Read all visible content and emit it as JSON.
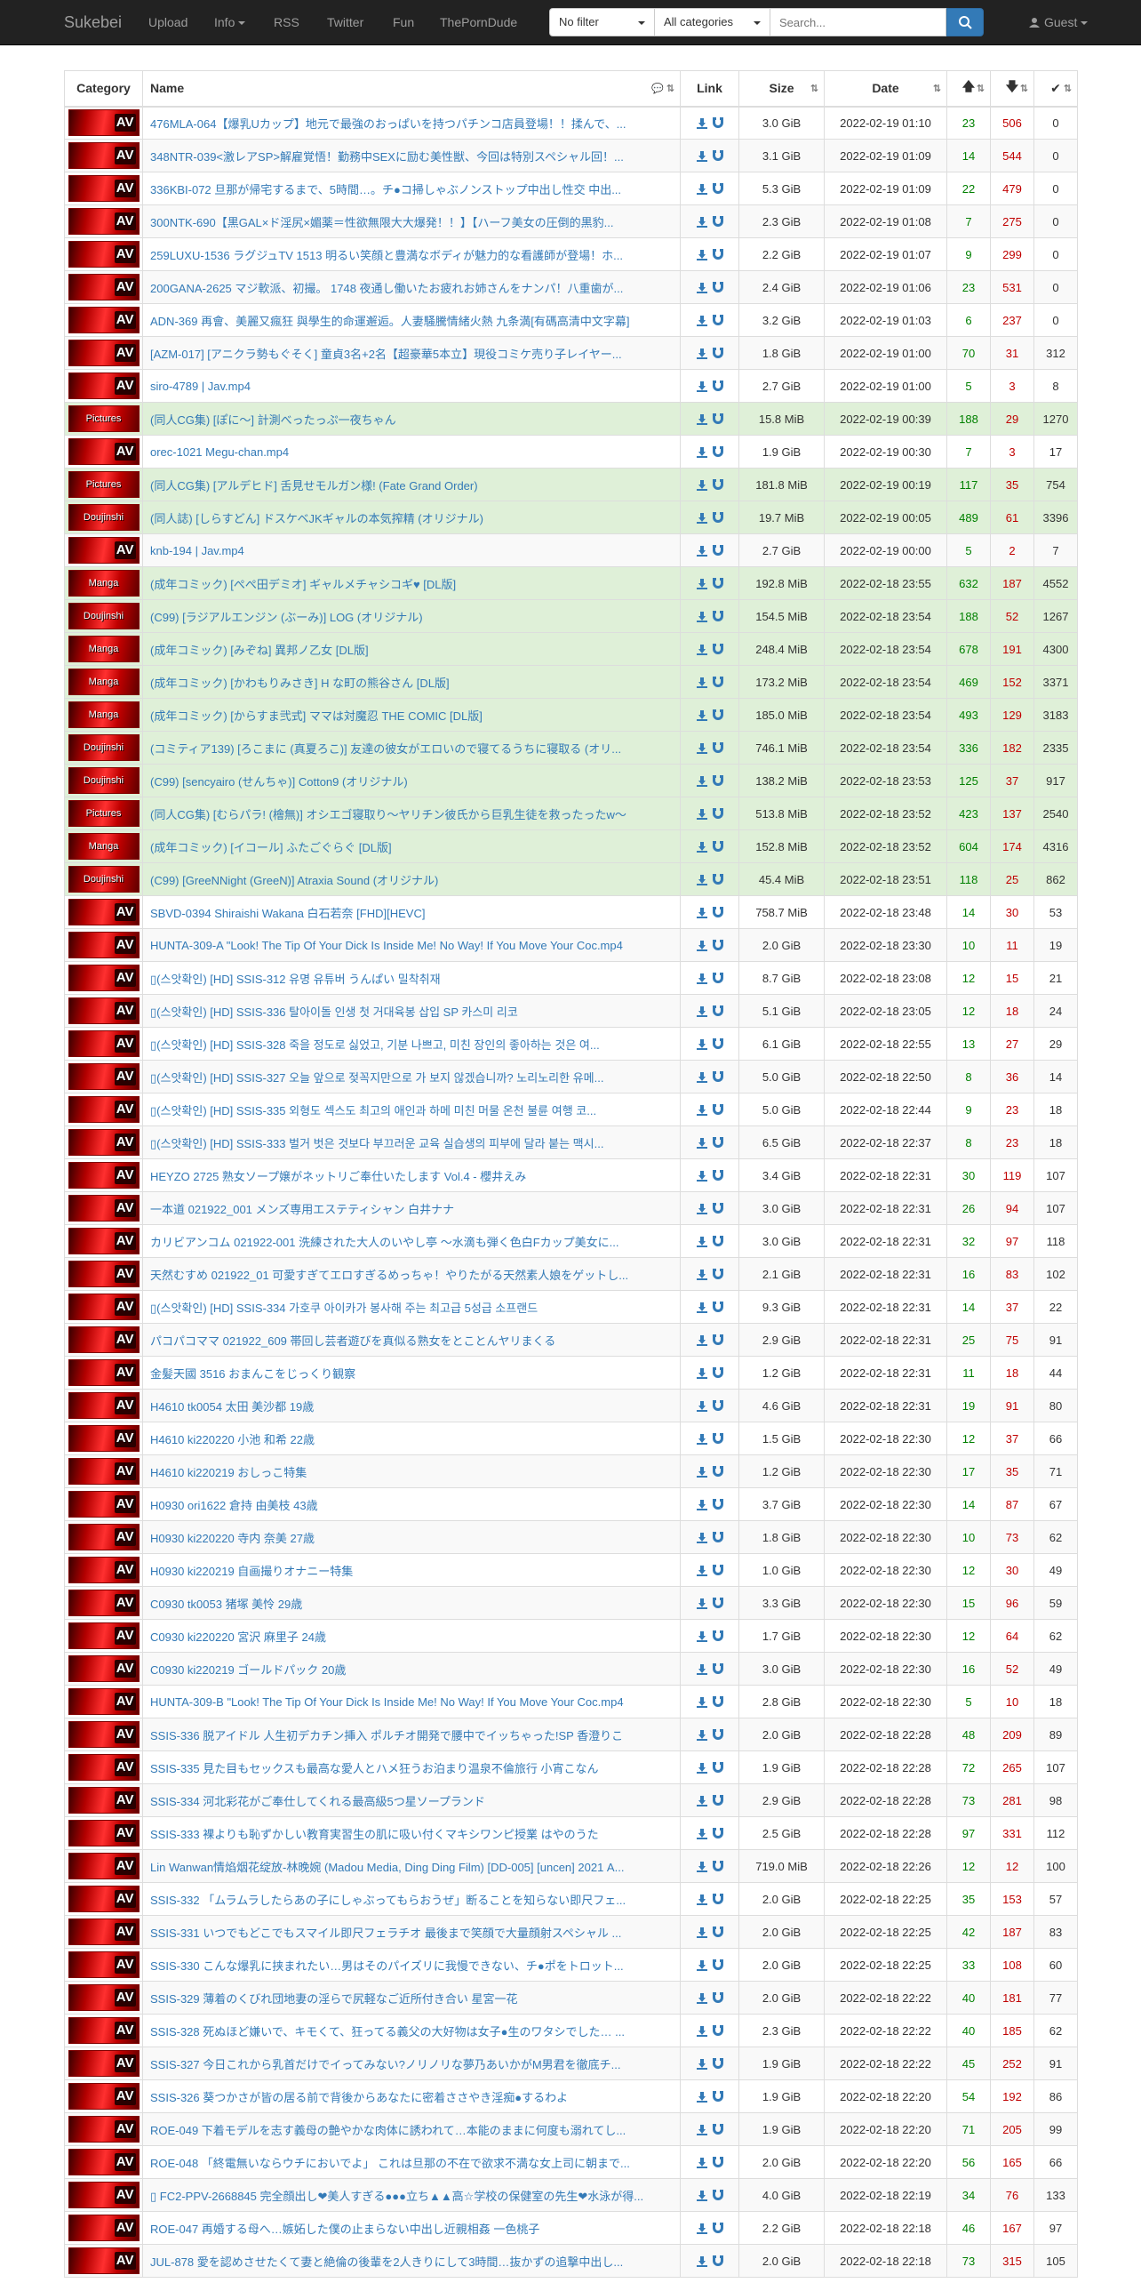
{
  "nav": {
    "brand": "Sukebei",
    "upload": "Upload",
    "info": "Info",
    "rss": "RSS",
    "twitter": "Twitter",
    "fun": "Fun",
    "thepornddude": "ThePornDude",
    "filter": "No filter",
    "categories": "All categories",
    "search_placeholder": "Search...",
    "guest": "Guest"
  },
  "table": {
    "headers": {
      "category": "Category",
      "name": "Name",
      "link": "Link",
      "size": "Size",
      "date": "Date"
    },
    "rows": [
      {
        "cat": "AV",
        "name": "476MLA-064【爆乳Uカップ】地元で最強のおっぱいを持つパチンコ店員登場！！揉んで、...",
        "size": "3.0 GiB",
        "date": "2022-02-19 01:10",
        "seed": "23",
        "leech": "506",
        "done": "0"
      },
      {
        "cat": "AV",
        "name": "348NTR-039<激レアSP>解雇覚悟！勤務中SEXに励む美性獣、今回は特別スペシャル回！...",
        "size": "3.1 GiB",
        "date": "2022-02-19 01:09",
        "seed": "14",
        "leech": "544",
        "done": "0"
      },
      {
        "cat": "AV",
        "name": "336KBI-072 旦那が帰宅するまで、5時間…。チ●コ掃しゃぶノンストップ中出し性交 中出...",
        "size": "5.3 GiB",
        "date": "2022-02-19 01:09",
        "seed": "22",
        "leech": "479",
        "done": "0"
      },
      {
        "cat": "AV",
        "name": "300NTK-690【黒GAL×ド淫尻×媚薬＝性欲無限大大爆発！！】【ハーフ美女の圧倒的黒豹...",
        "size": "2.3 GiB",
        "date": "2022-02-19 01:08",
        "seed": "7",
        "leech": "275",
        "done": "0"
      },
      {
        "cat": "AV",
        "name": "259LUXU-1536 ラグジュTV 1513 明るい笑顔と豊満なボディが魅力的な看護師が登場！ホ...",
        "size": "2.2 GiB",
        "date": "2022-02-19 01:07",
        "seed": "9",
        "leech": "299",
        "done": "0"
      },
      {
        "cat": "AV",
        "name": "200GANA-2625 マジ軟派、初撮。 1748 夜通し働いたお疲れお姉さんをナンパ！八重歯が...",
        "size": "2.4 GiB",
        "date": "2022-02-19 01:06",
        "seed": "23",
        "leech": "531",
        "done": "0"
      },
      {
        "cat": "AV",
        "name": "ADN-369 再會、美麗又瘋狂 與學生的命運邂逅。人妻騒騰情緒火熱 九条満[有碼高清中文字幕]",
        "size": "3.2 GiB",
        "date": "2022-02-19 01:03",
        "seed": "6",
        "leech": "237",
        "done": "0"
      },
      {
        "cat": "AV",
        "name": "[AZM-017] [アニクラ勢もぐそく] 童貞3名+2名【超豪華5本立】現役コミケ売り子レイヤー...",
        "size": "1.8 GiB",
        "date": "2022-02-19 01:00",
        "seed": "70",
        "leech": "31",
        "done": "312"
      },
      {
        "cat": "AV",
        "name": "siro-4789 | Jav.mp4",
        "size": "2.7 GiB",
        "date": "2022-02-19 01:00",
        "seed": "5",
        "leech": "3",
        "done": "8"
      },
      {
        "cat": "Pictures",
        "name": "(同人CG集) [ぽに～] 計測べったっぷ一夜ちゃん",
        "size": "15.8 MiB",
        "date": "2022-02-19 00:39",
        "seed": "188",
        "leech": "29",
        "done": "1270",
        "ok": true
      },
      {
        "cat": "AV",
        "name": "orec-1021 Megu-chan.mp4",
        "size": "1.9 GiB",
        "date": "2022-02-19 00:30",
        "seed": "7",
        "leech": "3",
        "done": "17"
      },
      {
        "cat": "Pictures",
        "name": "(同人CG集) [アルデヒド] 舌見せモルガン様! (Fate Grand Order)",
        "size": "181.8 MiB",
        "date": "2022-02-19 00:19",
        "seed": "117",
        "leech": "35",
        "done": "754",
        "ok": true
      },
      {
        "cat": "Doujinshi",
        "name": "(同人誌) [しらすどん] ドスケベJKギャルの本気搾精 (オリジナル)",
        "size": "19.7 MiB",
        "date": "2022-02-19 00:05",
        "seed": "489",
        "leech": "61",
        "done": "3396",
        "ok": true
      },
      {
        "cat": "AV",
        "name": "knb-194 | Jav.mp4",
        "size": "2.7 GiB",
        "date": "2022-02-19 00:00",
        "seed": "5",
        "leech": "2",
        "done": "7"
      },
      {
        "cat": "Manga",
        "name": "(成年コミック) [ぺぺ田デミオ] ギャルメチャシコギ♥ [DL版]",
        "size": "192.8 MiB",
        "date": "2022-02-18 23:55",
        "seed": "632",
        "leech": "187",
        "done": "4552",
        "ok": true
      },
      {
        "cat": "Doujinshi",
        "name": "(C99) [ラジアルエンジン (ぶーみ)] LOG (オリジナル)",
        "size": "154.5 MiB",
        "date": "2022-02-18 23:54",
        "seed": "188",
        "leech": "52",
        "done": "1267",
        "ok": true
      },
      {
        "cat": "Manga",
        "name": "(成年コミック) [みぞね] 異邦ノ乙女 [DL版]",
        "size": "248.4 MiB",
        "date": "2022-02-18 23:54",
        "seed": "678",
        "leech": "191",
        "done": "4300",
        "ok": true
      },
      {
        "cat": "Manga",
        "name": "(成年コミック) [かわもりみさき] H な町の熊谷さん [DL版]",
        "size": "173.2 MiB",
        "date": "2022-02-18 23:54",
        "seed": "469",
        "leech": "152",
        "done": "3371",
        "ok": true
      },
      {
        "cat": "Manga",
        "name": "(成年コミック) [からすま弐式] ママは対魔忍 THE COMIC [DL版]",
        "size": "185.0 MiB",
        "date": "2022-02-18 23:54",
        "seed": "493",
        "leech": "129",
        "done": "3183",
        "ok": true
      },
      {
        "cat": "Doujinshi",
        "name": "(コミティア139) [ろこまに (真夏ろこ)] 友達の彼女がエロいので寝てるうちに寝取る (オリ...",
        "size": "746.1 MiB",
        "date": "2022-02-18 23:54",
        "seed": "336",
        "leech": "182",
        "done": "2335",
        "ok": true
      },
      {
        "cat": "Doujinshi",
        "name": "(C99) [sencyairo (せんちゃ)] Cotton9 (オリジナル)",
        "size": "138.2 MiB",
        "date": "2022-02-18 23:53",
        "seed": "125",
        "leech": "37",
        "done": "917",
        "ok": true
      },
      {
        "cat": "Pictures",
        "name": "(同人CG集) [むらパラ! (檜無)] オシエゴ寝取り～ヤリチン彼氏から巨乳生徒を救ったったw～",
        "size": "513.8 MiB",
        "date": "2022-02-18 23:52",
        "seed": "423",
        "leech": "137",
        "done": "2540",
        "ok": true
      },
      {
        "cat": "Manga",
        "name": "(成年コミック) [イコール] ふたごぐらぐ [DL版]",
        "size": "152.8 MiB",
        "date": "2022-02-18 23:52",
        "seed": "604",
        "leech": "174",
        "done": "4316",
        "ok": true
      },
      {
        "cat": "Doujinshi",
        "name": "(C99) [GreeNNight (GreeN)] Atraxia Sound (オリジナル)",
        "size": "45.4 MiB",
        "date": "2022-02-18 23:51",
        "seed": "118",
        "leech": "25",
        "done": "862",
        "ok": true
      },
      {
        "cat": "AV",
        "name": "SBVD-0394 Shiraishi Wakana 白石若奈 [FHD][HEVC]",
        "size": "758.7 MiB",
        "date": "2022-02-18 23:48",
        "seed": "14",
        "leech": "30",
        "done": "53"
      },
      {
        "cat": "AV",
        "name": "HUNTA-309-A \"Look! The Tip Of Your Dick Is Inside Me! No Way! If You Move Your Coc.mp4",
        "size": "2.0 GiB",
        "date": "2022-02-18 23:30",
        "seed": "10",
        "leech": "11",
        "done": "19"
      },
      {
        "cat": "AV",
        "name": "▯(스앗확인) [HD] SSIS-312 유명 유튜버 うんぱい 밀착취재",
        "size": "8.7 GiB",
        "date": "2022-02-18 23:08",
        "seed": "12",
        "leech": "15",
        "done": "21"
      },
      {
        "cat": "AV",
        "name": "▯(스앗확인) [HD] SSIS-336 탈아이돌 인생 첫 거대육봉 삽입 SP 카스미 리코",
        "size": "5.1 GiB",
        "date": "2022-02-18 23:05",
        "seed": "12",
        "leech": "18",
        "done": "24"
      },
      {
        "cat": "AV",
        "name": "▯(스앗확인) [HD] SSIS-328 죽을 정도로 싫었고, 기분 나쁘고, 미친 장인의 좋아하는 것은 여...",
        "size": "6.1 GiB",
        "date": "2022-02-18 22:55",
        "seed": "13",
        "leech": "27",
        "done": "29"
      },
      {
        "cat": "AV",
        "name": "▯(스앗확인) [HD] SSIS-327 오늘 앞으로 젖꼭지만으로 가 보지 않겠습니까? 노리노리한 유메...",
        "size": "5.0 GiB",
        "date": "2022-02-18 22:50",
        "seed": "8",
        "leech": "36",
        "done": "14"
      },
      {
        "cat": "AV",
        "name": "▯(스앗확인) [HD] SSIS-335 외형도 섹스도 최고의 애인과 하메 미친 머물 온천 불륜 여행 코...",
        "size": "5.0 GiB",
        "date": "2022-02-18 22:44",
        "seed": "9",
        "leech": "23",
        "done": "18"
      },
      {
        "cat": "AV",
        "name": "▯(스앗확인) [HD] SSIS-333 벌거 벗은 것보다 부끄러운 교육 실습생의 피부에 달라 붙는 맥시...",
        "size": "6.5 GiB",
        "date": "2022-02-18 22:37",
        "seed": "8",
        "leech": "23",
        "done": "18"
      },
      {
        "cat": "AV",
        "name": "HEYZO 2725 熟女ソープ嬢がネットリご奉仕いたします Vol.4 - 櫻井えみ",
        "size": "3.4 GiB",
        "date": "2022-02-18 22:31",
        "seed": "30",
        "leech": "119",
        "done": "107"
      },
      {
        "cat": "AV",
        "name": "一本道 021922_001 メンズ専用エステティシャン 白井ナナ",
        "size": "3.0 GiB",
        "date": "2022-02-18 22:31",
        "seed": "26",
        "leech": "94",
        "done": "107"
      },
      {
        "cat": "AV",
        "name": "カリビアンコム 021922-001 洗練された大人のいやし亭 ～水滴も弾く色白Fカップ美女に...",
        "size": "3.0 GiB",
        "date": "2022-02-18 22:31",
        "seed": "32",
        "leech": "97",
        "done": "118"
      },
      {
        "cat": "AV",
        "name": "天然むすめ 021922_01 可愛すぎてエロすぎるめっちゃ！やりたがる天然素人娘をゲットし...",
        "size": "2.1 GiB",
        "date": "2022-02-18 22:31",
        "seed": "16",
        "leech": "83",
        "done": "102"
      },
      {
        "cat": "AV",
        "name": "▯(스앗확인) [HD] SSIS-334 가호쿠 아이카가 봉사해 주는 최고급 5성급 소프랜드",
        "size": "9.3 GiB",
        "date": "2022-02-18 22:31",
        "seed": "14",
        "leech": "37",
        "done": "22"
      },
      {
        "cat": "AV",
        "name": "パコパコママ 021922_609 帯回し芸者遊びを真似る熟女をとことんヤリまくる",
        "size": "2.9 GiB",
        "date": "2022-02-18 22:31",
        "seed": "25",
        "leech": "75",
        "done": "91"
      },
      {
        "cat": "AV",
        "name": "金髪天國 3516 おまんこをじっくり観察",
        "size": "1.2 GiB",
        "date": "2022-02-18 22:31",
        "seed": "11",
        "leech": "18",
        "done": "44"
      },
      {
        "cat": "AV",
        "name": "H4610 tk0054 太田 美沙都 19歳",
        "size": "4.6 GiB",
        "date": "2022-02-18 22:31",
        "seed": "19",
        "leech": "91",
        "done": "80"
      },
      {
        "cat": "AV",
        "name": "H4610 ki220220 小池 和希 22歳",
        "size": "1.5 GiB",
        "date": "2022-02-18 22:30",
        "seed": "12",
        "leech": "37",
        "done": "66"
      },
      {
        "cat": "AV",
        "name": "H4610 ki220219 おしっこ特集",
        "size": "1.2 GiB",
        "date": "2022-02-18 22:30",
        "seed": "17",
        "leech": "35",
        "done": "71"
      },
      {
        "cat": "AV",
        "name": "H0930 ori1622 倉持 由美枝 43歳",
        "size": "3.7 GiB",
        "date": "2022-02-18 22:30",
        "seed": "14",
        "leech": "87",
        "done": "67"
      },
      {
        "cat": "AV",
        "name": "H0930 ki220220 寺内 奈美 27歳",
        "size": "1.8 GiB",
        "date": "2022-02-18 22:30",
        "seed": "10",
        "leech": "73",
        "done": "62"
      },
      {
        "cat": "AV",
        "name": "H0930 ki220219 自画撮りオナニー特集",
        "size": "1.0 GiB",
        "date": "2022-02-18 22:30",
        "seed": "12",
        "leech": "30",
        "done": "49"
      },
      {
        "cat": "AV",
        "name": "C0930 tk0053 猪塚 美怜 29歳",
        "size": "3.3 GiB",
        "date": "2022-02-18 22:30",
        "seed": "15",
        "leech": "96",
        "done": "59"
      },
      {
        "cat": "AV",
        "name": "C0930 ki220220 宮沢 麻里子 24歳",
        "size": "1.7 GiB",
        "date": "2022-02-18 22:30",
        "seed": "12",
        "leech": "64",
        "done": "62"
      },
      {
        "cat": "AV",
        "name": "C0930 ki220219 ゴールドパック 20歳",
        "size": "3.0 GiB",
        "date": "2022-02-18 22:30",
        "seed": "16",
        "leech": "52",
        "done": "49"
      },
      {
        "cat": "AV",
        "name": "HUNTA-309-B \"Look! The Tip Of Your Dick Is Inside Me! No Way! If You Move Your Coc.mp4",
        "size": "2.8 GiB",
        "date": "2022-02-18 22:30",
        "seed": "5",
        "leech": "10",
        "done": "18"
      },
      {
        "cat": "AV",
        "name": "SSIS-336 脱アイドル 人生初デカチン挿入 ポルチオ開発で腰中でイッちゃった!SP 香澄りこ",
        "size": "2.0 GiB",
        "date": "2022-02-18 22:28",
        "seed": "48",
        "leech": "209",
        "done": "89"
      },
      {
        "cat": "AV",
        "name": "SSIS-335 見た目もセックスも最高な愛人とハメ狂うお泊まり温泉不倫旅行 小宵こなん",
        "size": "1.9 GiB",
        "date": "2022-02-18 22:28",
        "seed": "72",
        "leech": "265",
        "done": "107"
      },
      {
        "cat": "AV",
        "name": "SSIS-334 河北彩花がご奉仕してくれる最高級5つ星ソープランド",
        "size": "2.9 GiB",
        "date": "2022-02-18 22:28",
        "seed": "73",
        "leech": "281",
        "done": "98"
      },
      {
        "cat": "AV",
        "name": "SSIS-333 裸よりも恥ずかしい教育実習生の肌に吸い付くマキシワンピ授業 はやのうた",
        "size": "2.5 GiB",
        "date": "2022-02-18 22:28",
        "seed": "97",
        "leech": "331",
        "done": "112"
      },
      {
        "cat": "AV",
        "name": "Lin Wanwan情焰烟花绽放-林晚婉 (Madou Media, Ding Ding Film) [DD-005] [uncen] 2021 A...",
        "size": "719.0 MiB",
        "date": "2022-02-18 22:26",
        "seed": "12",
        "leech": "12",
        "done": "100"
      },
      {
        "cat": "AV",
        "name": "SSIS-332 「ムラムラしたらあの子にしゃぶってもらおうぜ」断ることを知らない即尺フェ...",
        "size": "2.0 GiB",
        "date": "2022-02-18 22:25",
        "seed": "35",
        "leech": "153",
        "done": "57"
      },
      {
        "cat": "AV",
        "name": "SSIS-331 いつでもどこでもスマイル即尺フェラチオ 最後まで笑顔で大量顔射スペシャル ...",
        "size": "2.0 GiB",
        "date": "2022-02-18 22:25",
        "seed": "42",
        "leech": "187",
        "done": "83"
      },
      {
        "cat": "AV",
        "name": "SSIS-330 こんな爆乳に挟まれたい…男はそのパイズリに我慢できない、チ●ポをトロット...",
        "size": "2.0 GiB",
        "date": "2022-02-18 22:25",
        "seed": "33",
        "leech": "108",
        "done": "60"
      },
      {
        "cat": "AV",
        "name": "SSIS-329 薄着のくびれ団地妻の淫らで尻軽なご近所付き合い 星宮一花",
        "size": "2.0 GiB",
        "date": "2022-02-18 22:22",
        "seed": "40",
        "leech": "181",
        "done": "77"
      },
      {
        "cat": "AV",
        "name": "SSIS-328 死ぬほど嫌いで、キモくて、狂ってる義父の大好物は女子●生のワタシでした… ...",
        "size": "2.3 GiB",
        "date": "2022-02-18 22:22",
        "seed": "40",
        "leech": "185",
        "done": "62"
      },
      {
        "cat": "AV",
        "name": "SSIS-327 今日これから乳首だけでイってみない?ノリノリな夢乃あいかがM男君を徹底チ...",
        "size": "1.9 GiB",
        "date": "2022-02-18 22:22",
        "seed": "45",
        "leech": "252",
        "done": "91"
      },
      {
        "cat": "AV",
        "name": "SSIS-326 葵つかさが皆の居る前で背後からあなたに密着ささやき淫痴●するわよ",
        "size": "1.9 GiB",
        "date": "2022-02-18 22:20",
        "seed": "54",
        "leech": "192",
        "done": "86"
      },
      {
        "cat": "AV",
        "name": "ROE-049 下着モデルを志す義母の艶やかな肉体に誘われて…本能のままに何度も溺れてし...",
        "size": "1.9 GiB",
        "date": "2022-02-18 22:20",
        "seed": "71",
        "leech": "205",
        "done": "99"
      },
      {
        "cat": "AV",
        "name": "ROE-048 「終電無いならウチにおいでよ」 これは旦那の不在で欲求不満な女上司に朝まで...",
        "size": "2.0 GiB",
        "date": "2022-02-18 22:20",
        "seed": "56",
        "leech": "165",
        "done": "66"
      },
      {
        "cat": "AV",
        "name": "▯ FC2-PPV-2668845 完全顔出し❤美人すぎる●●●立ち▲▲高☆学校の保健室の先生❤水泳が得...",
        "size": "4.0 GiB",
        "date": "2022-02-18 22:19",
        "seed": "34",
        "leech": "76",
        "done": "133"
      },
      {
        "cat": "AV",
        "name": "ROE-047 再婚する母へ…嫉妬した僕の止まらない中出し近親相姦 一色桃子",
        "size": "2.2 GiB",
        "date": "2022-02-18 22:18",
        "seed": "46",
        "leech": "167",
        "done": "97"
      },
      {
        "cat": "AV",
        "name": "JUL-878 愛を認めさせたくて妻と絶倫の後輩を2人きりにして3時間…抜かずの追撃中出し...",
        "size": "2.0 GiB",
        "date": "2022-02-18 22:18",
        "seed": "73",
        "leech": "315",
        "done": "105"
      }
    ]
  }
}
